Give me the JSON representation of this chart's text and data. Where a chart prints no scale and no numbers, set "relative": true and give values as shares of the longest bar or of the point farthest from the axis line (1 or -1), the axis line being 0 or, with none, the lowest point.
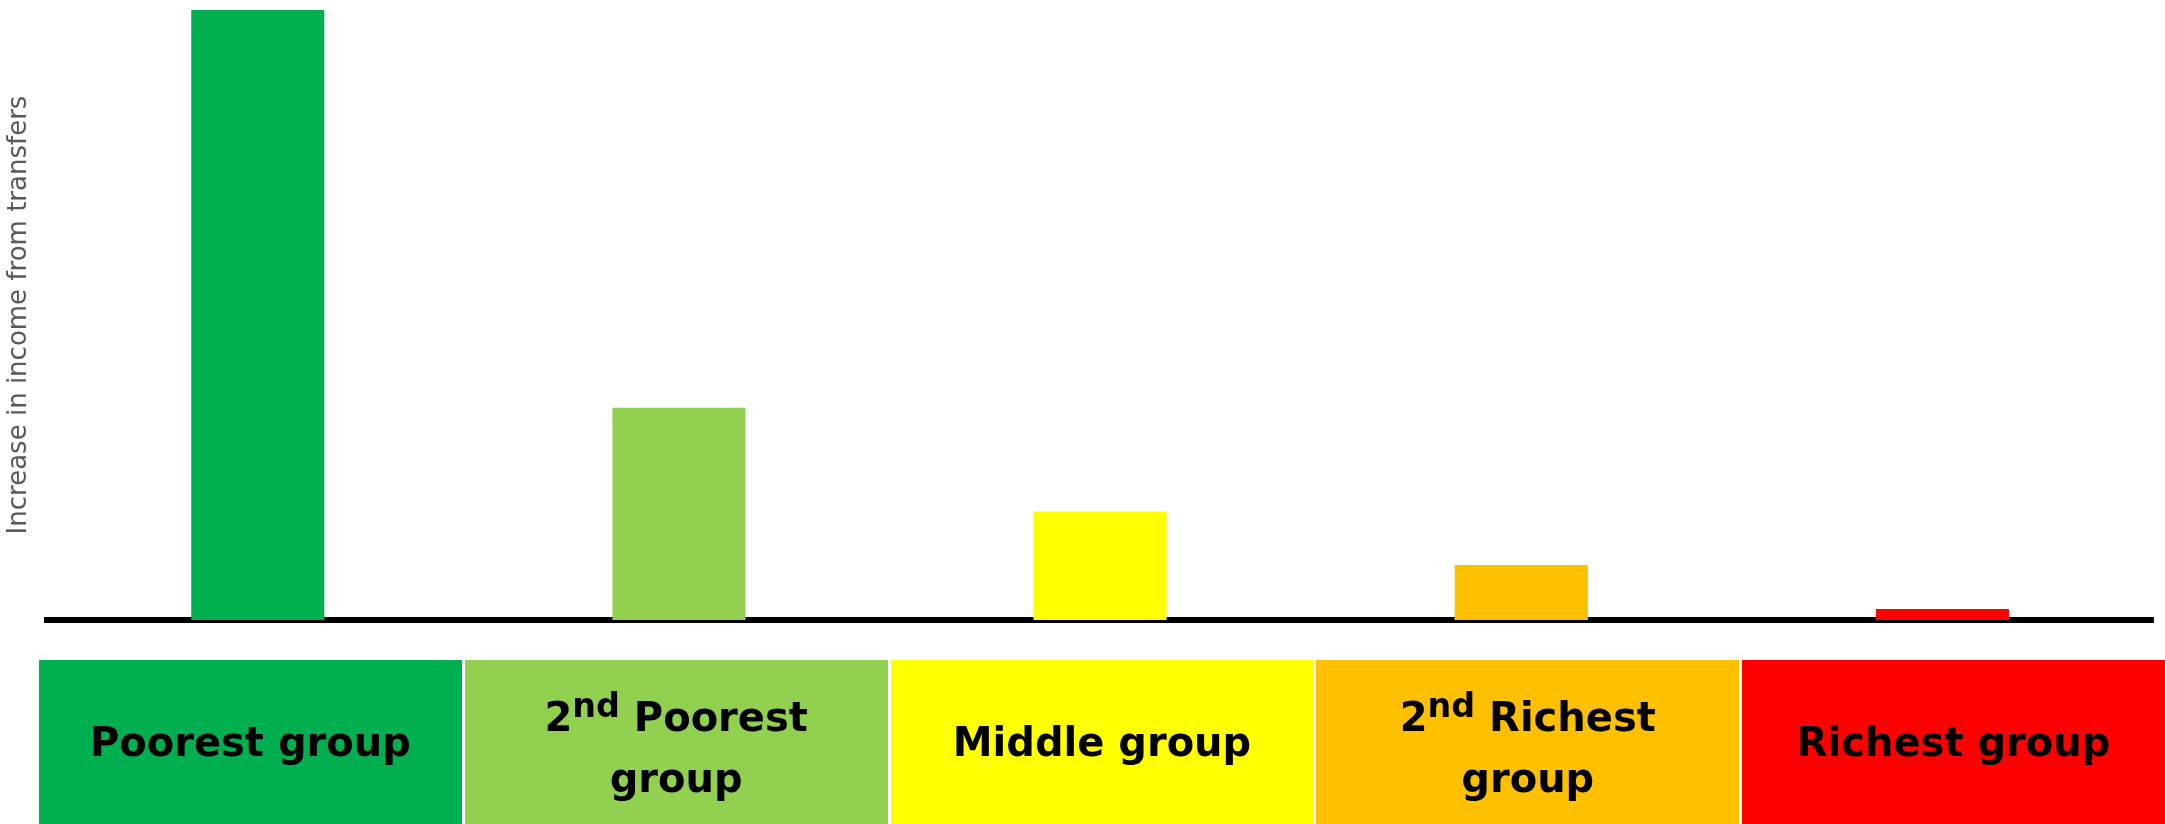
{
  "chart_data": {
    "type": "bar",
    "relative": true,
    "ylabel": "Increase in income from transfers",
    "categories": [
      "Poorest group",
      "2$^{nd}$ Poorest group",
      "Middle group",
      "2$^{nd}$ Richest group",
      "Richest group"
    ],
    "values": [
      1,
      0.348,
      0.178,
      0.09,
      0.018
    ],
    "colors": [
      "#00b050",
      "#92d050",
      "#ffff00",
      "#ffc000",
      "#ff0000"
    ],
    "grid": false,
    "legend": false
  }
}
